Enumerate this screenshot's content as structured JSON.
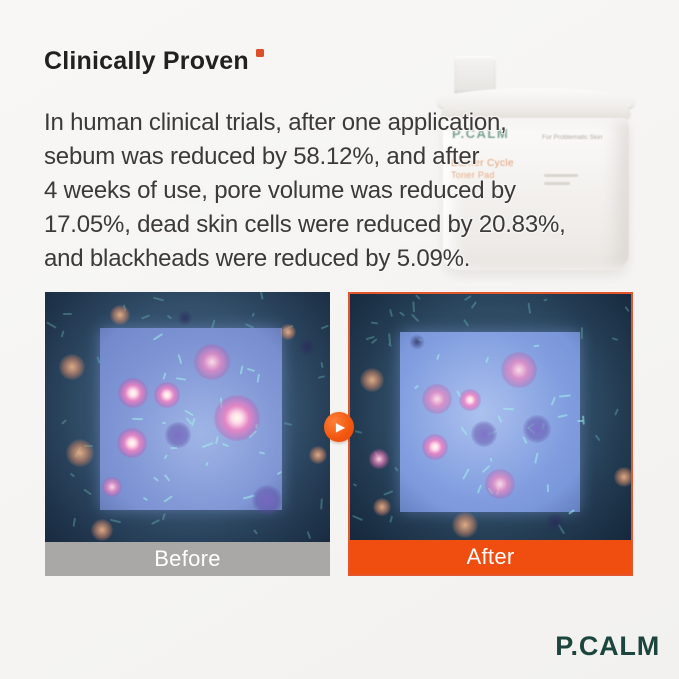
{
  "title": {
    "text": "Clinically Proven",
    "mark_color": "#DD4F2A"
  },
  "intro": {
    "lines": [
      "In human clinical trials, after one application,",
      "sebum was reduced by 58.12%, and after",
      "4 weeks of use, pore volume was reduced by",
      "17.05%, dead skin cells were reduced by 20.83%,",
      "and blackheads were reduced by 5.09%."
    ],
    "stats": {
      "sebum_reduction": "58.12%",
      "pore_volume_reduction": "17.05%",
      "dead_skin_cells_reduction": "20.83%",
      "blackheads_reduction": "5.09%",
      "duration": "4 weeks"
    }
  },
  "comparison": {
    "before_label": "Before",
    "after_label": "After",
    "arrow_glyph": "▶",
    "before_bar_color": "#A9A8A6",
    "after_bar_color": "#F04E11",
    "after_border_color": "#E4552B"
  },
  "product_jar": {
    "brand": "P.CALM",
    "label_line1": "Barrier Cycle",
    "label_line2": "Toner Pad",
    "side_text": "For Problematic Skin"
  },
  "footer": {
    "brand": "P.CALM",
    "brand_color": "#1C463D"
  },
  "colors": {
    "accent_orange": "#F04E11",
    "background": "#F6F5F3",
    "body_text": "#3B3A39"
  }
}
